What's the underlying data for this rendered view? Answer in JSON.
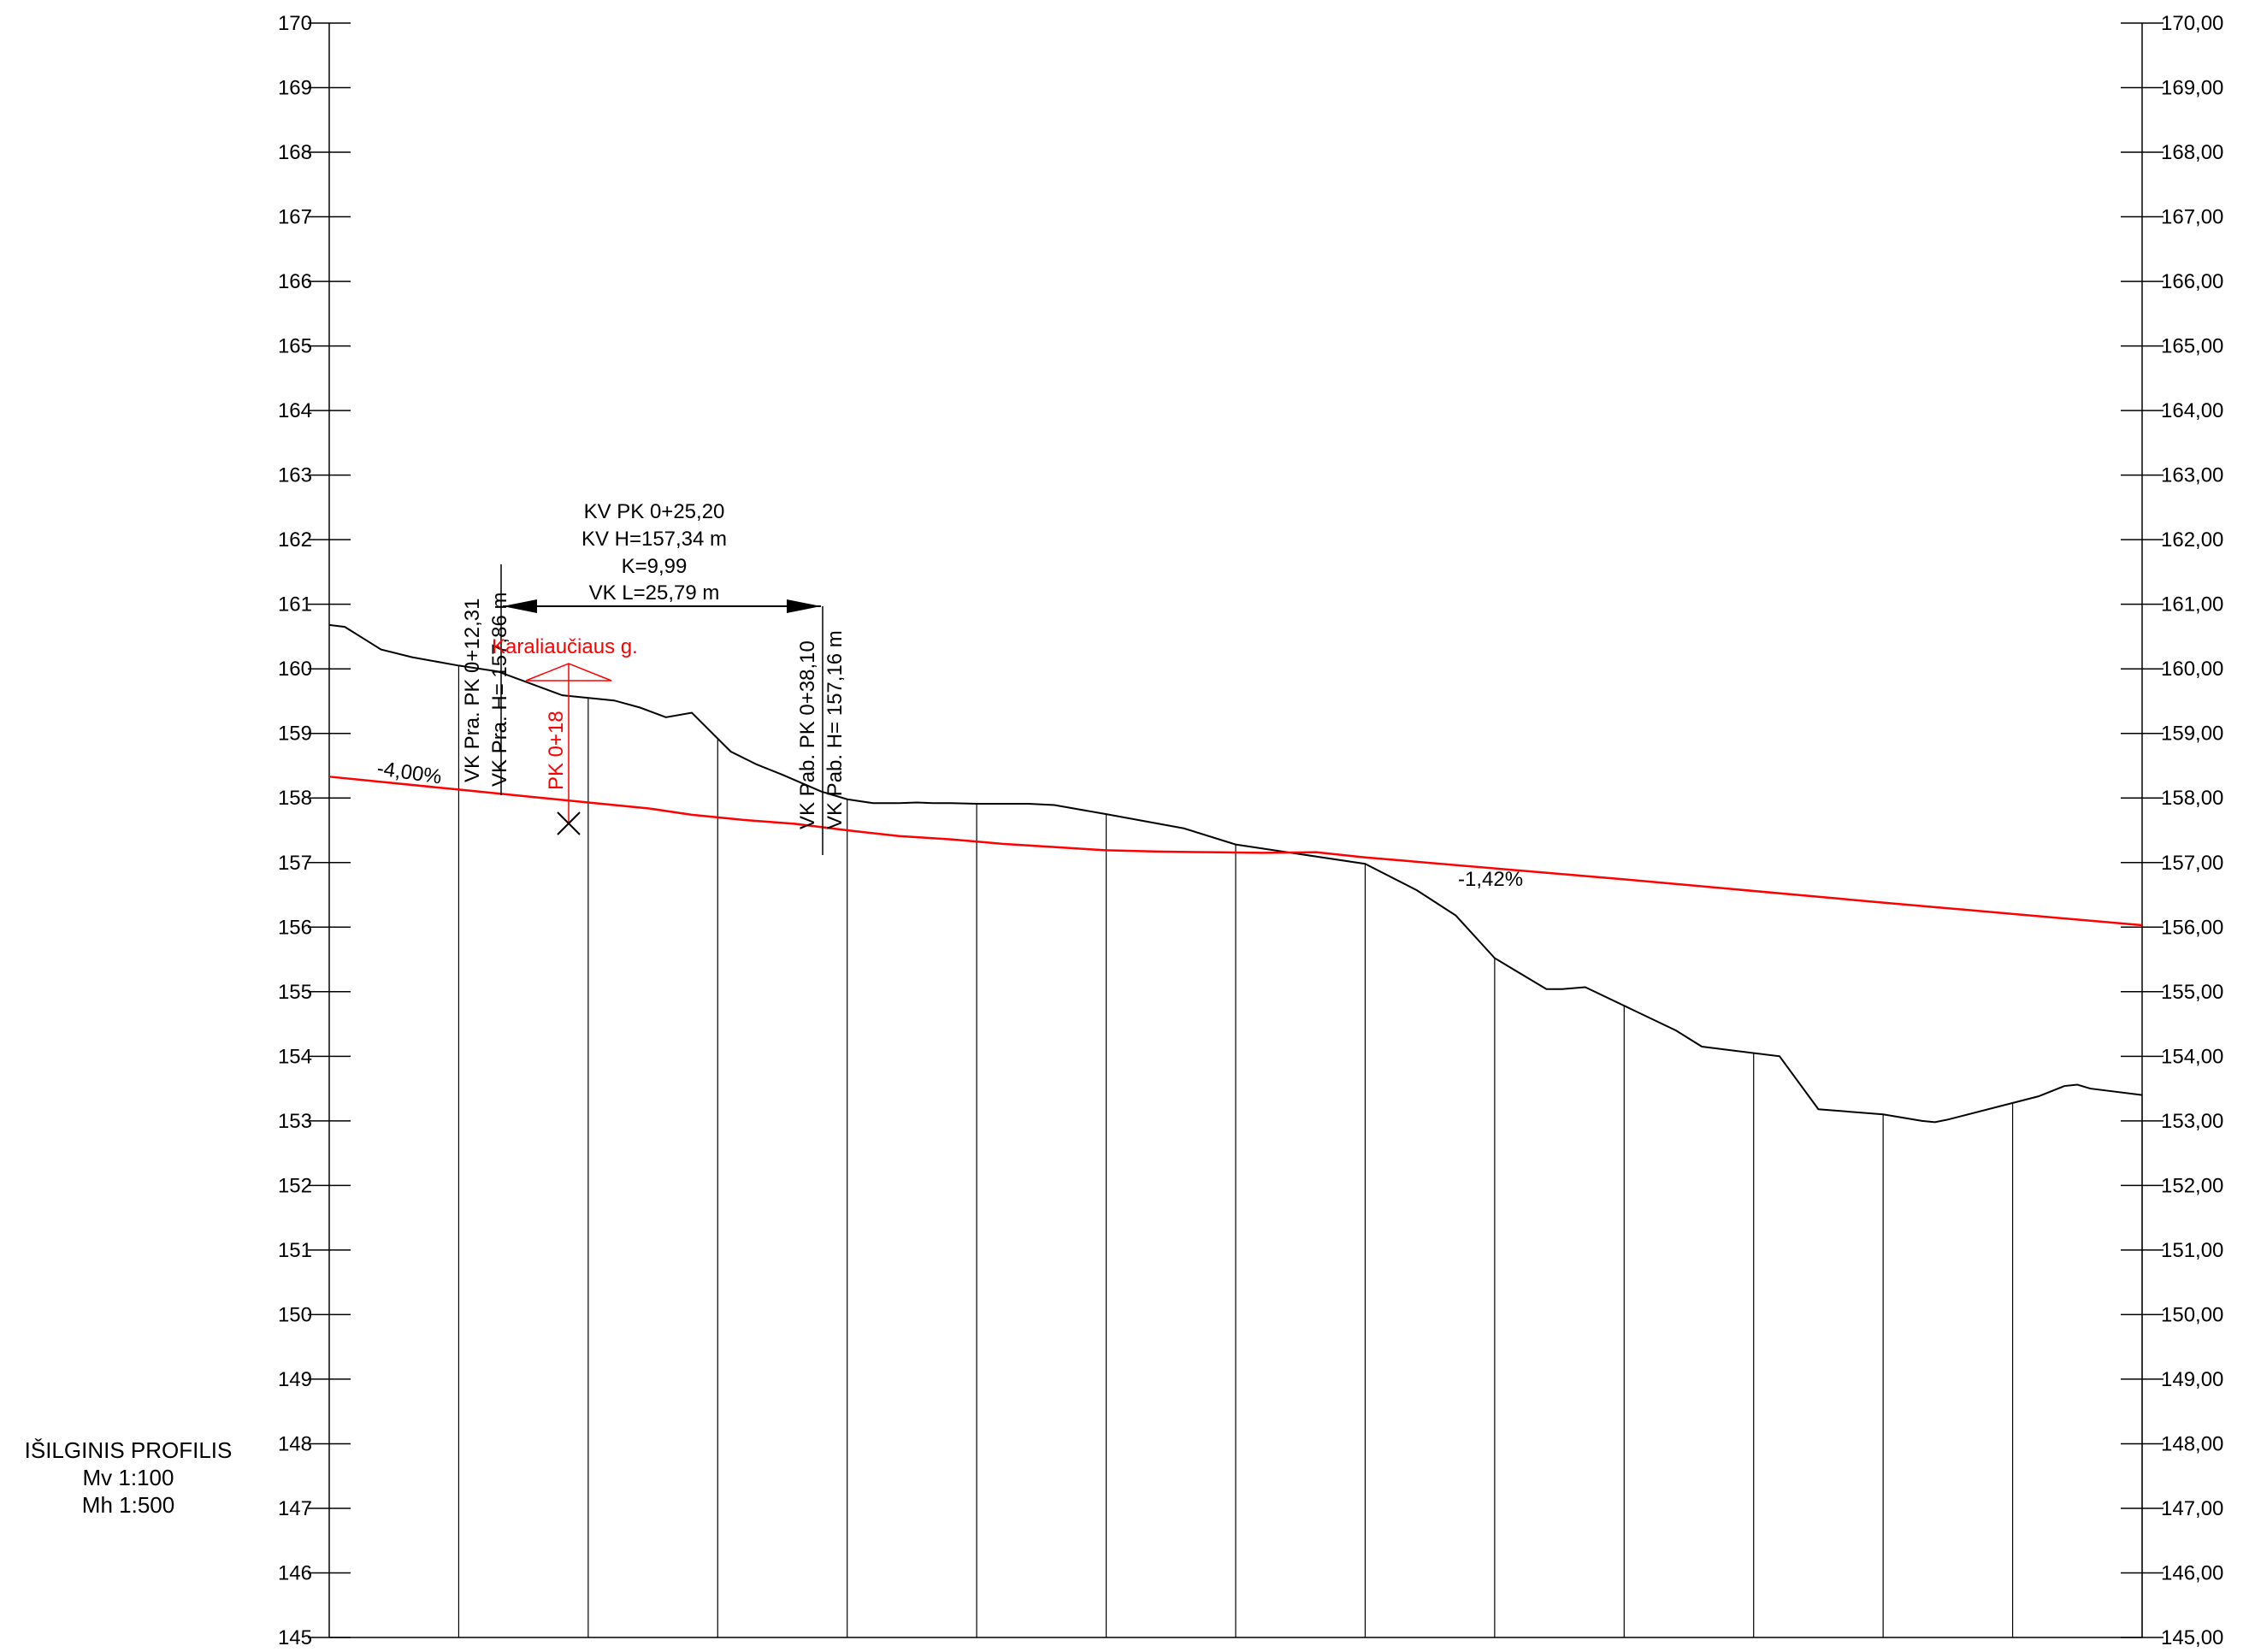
{
  "title": {
    "name": "IŠILGINIS PROFILIS",
    "scale_v": "Mv 1:100",
    "scale_h": "Mh 1:500"
  },
  "axes": {
    "left_ticks": [
      "170",
      "169",
      "168",
      "167",
      "166",
      "165",
      "164",
      "163",
      "162",
      "161",
      "160",
      "159",
      "158",
      "157",
      "156",
      "155",
      "154",
      "153",
      "152",
      "151",
      "150",
      "149",
      "148",
      "147",
      "146",
      "145"
    ],
    "right_ticks": [
      "170,00",
      "169,00",
      "168,00",
      "167,00",
      "166,00",
      "165,00",
      "164,00",
      "163,00",
      "162,00",
      "161,00",
      "160,00",
      "159,00",
      "158,00",
      "157,00",
      "156,00",
      "155,00",
      "154,00",
      "153,00",
      "152,00",
      "151,00",
      "150,00",
      "149,00",
      "148,00",
      "147,00",
      "146,00",
      "145,00"
    ]
  },
  "curve_info": {
    "kv_pk": "KV PK 0+25,20",
    "kv_h": "KV H=157,34 m",
    "k": "K=9,99",
    "vk_l": "VK L=25,79 m"
  },
  "labels": {
    "vk_start_pk": "VK Pra. PK 0+12,31",
    "vk_start_h": "VK Pra. H= 157,86 m",
    "vk_end_pk": "VK Pab. PK 0+38,10",
    "vk_end_h": "VK Pab. H= 157,16 m",
    "street": "Karaliaučiaus g.",
    "pk_mark": "PK 0+18",
    "slope_1": "-4,00%",
    "slope_2": "-1,42%"
  },
  "colors": {
    "ground": "#000000",
    "design": "#ff0000",
    "grid": "#000000"
  },
  "chart_data": {
    "type": "line",
    "ylim": [
      145,
      170
    ],
    "xlim": [
      0,
      70
    ],
    "series": [
      {
        "x": [
          0,
          0.6,
          1.2,
          2,
          3.2,
          5,
          6.5,
          9,
          11,
          12,
          13,
          14,
          15.5,
          16.5,
          17.5,
          19,
          20,
          21,
          22,
          22.7,
          23.3,
          24,
          25,
          26,
          27,
          28,
          30,
          33,
          35,
          40,
          42,
          43.5,
          45,
          47,
          47.6,
          48.5,
          52,
          53,
          56,
          57.5,
          60,
          61.5,
          62,
          62.5,
          66,
          67,
          67.5,
          68,
          70
        ],
        "y": [
          160.68,
          160.65,
          160.5,
          160.3,
          160.18,
          160.05,
          159.96,
          159.59,
          159.51,
          159.4,
          159.25,
          159.32,
          158.72,
          158.52,
          158.36,
          158.1,
          157.98,
          157.92,
          157.92,
          157.93,
          157.92,
          157.92,
          157.91,
          157.91,
          157.91,
          157.89,
          157.75,
          157.53,
          157.28,
          156.98,
          156.57,
          156.18,
          155.52,
          155.04,
          155.04,
          155.07,
          154.4,
          154.15,
          154.0,
          153.18,
          153.1,
          153.0,
          152.98,
          153.02,
          153.38,
          153.54,
          153.56,
          153.5,
          153.4
        ]
      },
      {
        "x": [
          0,
          5,
          10,
          12.31,
          14,
          16,
          18,
          20,
          22,
          24,
          26,
          28,
          30,
          32,
          34,
          36,
          38.1,
          40,
          50,
          60,
          70
        ],
        "y": [
          158.33,
          158.13,
          157.93,
          157.84,
          157.74,
          157.66,
          157.6,
          157.5,
          157.41,
          157.36,
          157.29,
          157.24,
          157.19,
          157.17,
          157.16,
          157.15,
          157.16,
          157.08,
          156.74,
          156.38,
          156.03
        ]
      }
    ],
    "stations": [
      0,
      5,
      10,
      15,
      20,
      25,
      30,
      35,
      40,
      45,
      50,
      55,
      60,
      65,
      70
    ]
  }
}
